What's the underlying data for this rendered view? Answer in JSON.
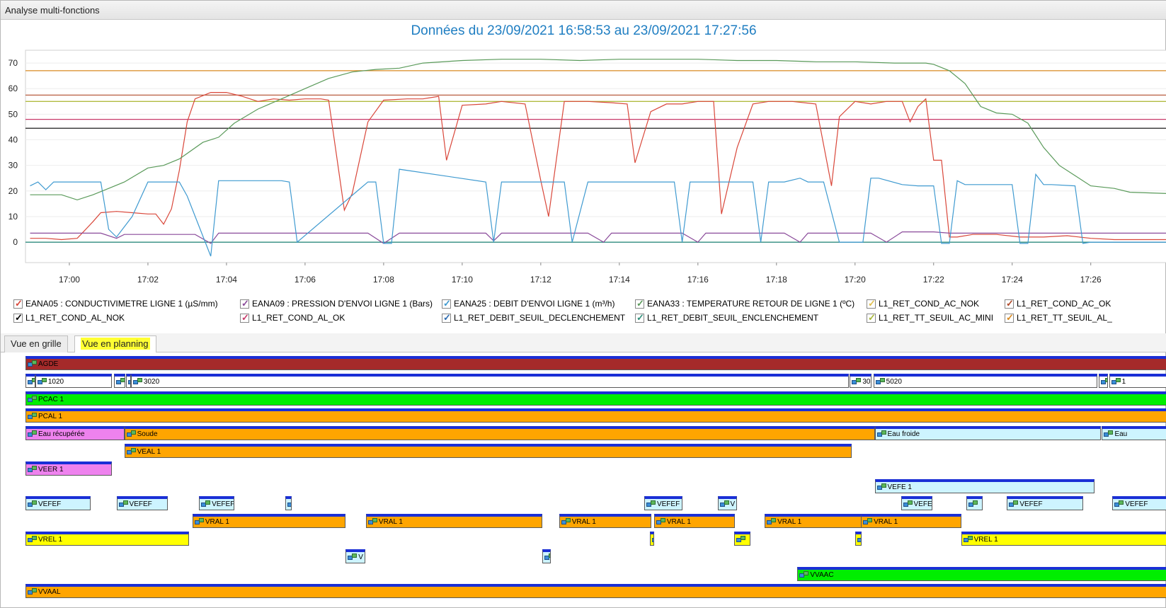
{
  "window": {
    "title": "Analyse multi-fonctions"
  },
  "chart_title": "Données du 23/09/2021 16:58:53 au 23/09/2021 17:27:56",
  "chart_data": {
    "type": "line",
    "title": "Données du 23/09/2021 16:58:53 au 23/09/2021 17:27:56",
    "xlim": [
      "16:58:53",
      "17:27:56"
    ],
    "ylim": [
      -8,
      75
    ],
    "y_ticks": [
      0,
      10,
      20,
      30,
      40,
      50,
      60,
      70
    ],
    "x_ticks": [
      "17:00",
      "17:02",
      "17:04",
      "17:06",
      "17:08",
      "17:10",
      "17:12",
      "17:14",
      "17:16",
      "17:18",
      "17:20",
      "17:22",
      "17:24",
      "17:26"
    ],
    "grid": true,
    "legend_position": "bottom",
    "series": [
      {
        "name": "EANA05 : CONDUCTIVIMETRE LIGNE 1 (µS/mm)",
        "color": "#d9473a",
        "x": [
          "16:59:00",
          "16:59:24",
          "16:59:48",
          "17:00:12",
          "17:00:36",
          "17:00:48",
          "17:01:12",
          "17:01:36",
          "17:02:00",
          "17:02:12",
          "17:02:24",
          "17:02:36",
          "17:02:48",
          "17:03:00",
          "17:03:12",
          "17:03:36",
          "17:04:00",
          "17:04:24",
          "17:04:48",
          "17:05:12",
          "17:05:36",
          "17:06:00",
          "17:06:24",
          "17:06:36",
          "17:07:00",
          "17:07:12",
          "17:07:36",
          "17:08:00",
          "17:08:36",
          "17:09:00",
          "17:09:24",
          "17:09:36",
          "17:10:00",
          "17:10:36",
          "17:11:00",
          "17:11:36",
          "17:12:00",
          "17:12:12",
          "17:12:36",
          "17:13:12",
          "17:13:48",
          "17:14:12",
          "17:14:24",
          "17:14:48",
          "17:15:12",
          "17:15:36",
          "17:16:00",
          "17:16:24",
          "17:16:36",
          "17:17:00",
          "17:17:24",
          "17:17:48",
          "17:18:24",
          "17:19:00",
          "17:19:24",
          "17:19:36",
          "17:20:00",
          "17:20:24",
          "17:20:48",
          "17:21:12",
          "17:21:24",
          "17:21:36",
          "17:21:48",
          "17:22:00",
          "17:22:12",
          "17:22:24",
          "17:22:36",
          "17:23:00",
          "17:23:36",
          "17:24:12",
          "17:24:48",
          "17:25:24",
          "17:26:00",
          "17:26:36",
          "17:27:12",
          "17:27:56"
        ],
        "y": [
          1.5,
          1.5,
          1,
          1.5,
          8,
          11.5,
          12,
          11.5,
          11,
          11,
          7,
          13,
          28,
          47,
          56,
          58.5,
          58.5,
          57,
          55,
          56,
          55.5,
          56,
          56,
          55.5,
          12.5,
          19,
          47,
          55.5,
          56,
          56,
          57,
          32,
          53.5,
          54,
          55,
          54,
          24,
          10,
          55,
          55,
          54.5,
          54,
          31,
          51,
          54,
          54,
          55,
          55,
          11,
          37,
          54,
          55,
          55,
          54,
          22,
          49,
          55,
          54,
          55,
          55,
          47,
          53,
          56,
          32,
          32,
          2,
          2,
          3,
          3,
          2,
          2,
          2.5,
          1.5,
          1,
          1,
          1
        ]
      },
      {
        "name": "EANA09 : PRESSION D'ENVOI LIGNE 1 (Bars)",
        "color": "#8a4a9a",
        "x": [
          "16:59:00",
          "17:00:48",
          "17:01:12",
          "17:01:24",
          "17:03:12",
          "17:03:36",
          "17:03:48",
          "17:07:36",
          "17:08:00",
          "17:08:24",
          "17:10:36",
          "17:10:48",
          "17:11:00",
          "17:11:12",
          "17:13:12",
          "17:13:36",
          "17:13:48",
          "17:15:36",
          "17:16:00",
          "17:16:12",
          "17:18:12",
          "17:18:36",
          "17:18:48",
          "17:20:24",
          "17:20:48",
          "17:21:12",
          "17:22:00",
          "17:22:24",
          "17:27:56"
        ],
        "y": [
          3.5,
          3.5,
          1.5,
          3,
          3,
          -0.5,
          3.5,
          3.5,
          -0.5,
          3.5,
          3.5,
          0.5,
          3.5,
          3.5,
          3.5,
          0,
          3.5,
          3.5,
          0,
          3.5,
          3.5,
          0,
          3.5,
          3.5,
          0,
          4,
          4,
          3.5,
          3.5
        ]
      },
      {
        "name": "EANA25 : DEBIT D'ENVOI LIGNE 1 (m³/h)",
        "color": "#3f9ad0",
        "x": [
          "16:59:00",
          "16:59:12",
          "16:59:24",
          "16:59:36",
          "17:00:48",
          "17:01:00",
          "17:01:12",
          "17:01:36",
          "17:02:00",
          "17:02:48",
          "17:03:00",
          "17:03:36",
          "17:03:48",
          "17:05:24",
          "17:05:36",
          "17:05:48",
          "17:07:36",
          "17:07:48",
          "17:08:00",
          "17:08:12",
          "17:08:24",
          "17:10:36",
          "17:10:48",
          "17:11:00",
          "17:12:36",
          "17:12:48",
          "17:13:12",
          "17:13:24",
          "17:13:48",
          "17:15:24",
          "17:15:36",
          "17:15:48",
          "17:16:00",
          "17:17:24",
          "17:17:36",
          "17:17:48",
          "17:18:12",
          "17:18:36",
          "17:18:48",
          "17:19:12",
          "17:19:36",
          "17:20:12",
          "17:20:24",
          "17:20:36",
          "17:21:12",
          "17:21:36",
          "17:22:00",
          "17:22:12",
          "17:22:24",
          "17:22:36",
          "17:22:48",
          "17:23:12",
          "17:24:00",
          "17:24:12",
          "17:24:24",
          "17:24:36",
          "17:24:48",
          "17:25:00",
          "17:25:36",
          "17:25:48",
          "17:26:00",
          "17:27:56"
        ],
        "y": [
          22,
          23.5,
          20.5,
          23.5,
          23.5,
          5,
          2,
          10,
          23.5,
          23.5,
          18,
          -5.5,
          24,
          24,
          23.5,
          0,
          23.5,
          23.5,
          -0.5,
          -0.5,
          28.5,
          23.5,
          0,
          23.5,
          23.5,
          0,
          23.5,
          23.5,
          23.5,
          23.5,
          0,
          23.5,
          23.5,
          23.5,
          0,
          23.5,
          23.5,
          25,
          23.5,
          23.5,
          0,
          0,
          25,
          25,
          22.5,
          22,
          22,
          -0.5,
          -0.5,
          24,
          22.5,
          22.5,
          22.5,
          -0.5,
          -0.5,
          26.5,
          22.5,
          22.5,
          22,
          -0.5,
          0,
          0
        ]
      },
      {
        "name": "EANA33 : TEMPERATURE RETOUR DE LIGNE 1 (ºC)",
        "color": "#5a9a5a",
        "x": [
          "16:59:00",
          "16:59:24",
          "16:59:48",
          "17:00:12",
          "17:00:36",
          "17:01:00",
          "17:01:24",
          "17:02:00",
          "17:02:24",
          "17:02:48",
          "17:03:24",
          "17:03:48",
          "17:04:12",
          "17:04:48",
          "17:05:24",
          "17:06:00",
          "17:06:36",
          "17:07:12",
          "17:07:48",
          "17:08:24",
          "17:09:00",
          "17:10:00",
          "17:11:00",
          "17:12:00",
          "17:13:00",
          "17:14:00",
          "17:15:00",
          "17:16:00",
          "17:17:00",
          "17:18:00",
          "17:19:00",
          "17:20:00",
          "17:21:00",
          "17:21:48",
          "17:22:00",
          "17:22:24",
          "17:22:48",
          "17:23:12",
          "17:23:36",
          "17:24:00",
          "17:24:24",
          "17:24:48",
          "17:25:12",
          "17:25:36",
          "17:26:00",
          "17:26:36",
          "17:27:00",
          "17:27:56"
        ],
        "y": [
          18.5,
          18.5,
          18.5,
          16.5,
          18.5,
          21,
          23.5,
          29,
          30,
          32.5,
          39,
          41,
          46.5,
          52,
          56,
          60,
          64,
          66.5,
          67.5,
          68,
          70,
          71,
          71.5,
          71.5,
          71,
          71.5,
          71.5,
          71.5,
          71,
          71,
          70.5,
          70.5,
          70,
          70,
          69.5,
          67,
          62,
          53,
          50.5,
          50,
          46.5,
          37,
          30,
          26,
          22,
          21,
          19.5,
          19
        ]
      },
      {
        "name": "L1_RET_COND_AL_NOK",
        "color": "#000000",
        "x": [
          "16:58:53",
          "17:27:56"
        ],
        "y": [
          44.5,
          44.5
        ]
      },
      {
        "name": "L1_RET_COND_AL_OK",
        "color": "#c83a6a",
        "x": [
          "16:58:53",
          "17:27:56"
        ],
        "y": [
          48,
          48
        ]
      },
      {
        "name": "L1_RET_DEBIT_SEUIL_DECLENCHEMENT",
        "color": "#2d6bb0",
        "x": [
          "16:58:53",
          "17:27:56"
        ],
        "y": [
          0,
          0
        ]
      },
      {
        "name": "L1_RET_DEBIT_SEUIL_ENCLENCHEMENT",
        "color": "#2f8f7a",
        "x": [
          "16:58:53",
          "17:27:56"
        ],
        "y": [
          0,
          0
        ]
      },
      {
        "name": "L1_RET_COND_AC_NOK",
        "color": "#e0c050",
        "x": [
          "16:58:53",
          "17:27:56"
        ],
        "y": [
          55,
          55
        ]
      },
      {
        "name": "L1_RET_COND_AC_OK",
        "color": "#b04a2a",
        "x": [
          "16:58:53",
          "17:27:56"
        ],
        "y": [
          57.5,
          57.5
        ]
      },
      {
        "name": "L1_RET_TT_SEUIL_AC_MINI",
        "color": "#a8b83a",
        "x": [
          "16:58:53",
          "17:27:56"
        ],
        "y": [
          55,
          55
        ]
      },
      {
        "name": "L1_RET_TT_SEUIL_AL_",
        "color": "#d88a20",
        "x": [
          "16:58:53",
          "17:27:56"
        ],
        "y": [
          67,
          67
        ]
      }
    ]
  },
  "legend": [
    {
      "label": "EANA05 : CONDUCTIVIMETRE LIGNE 1 (µS/mm)",
      "color": "#d9473a"
    },
    {
      "label": "EANA09 : PRESSION D'ENVOI LIGNE 1 (Bars)",
      "color": "#8a4a9a"
    },
    {
      "label": "EANA25 : DEBIT D'ENVOI LIGNE 1 (m³/h)",
      "color": "#3f9ad0"
    },
    {
      "label": "EANA33 : TEMPERATURE RETOUR DE LIGNE 1 (ºC)",
      "color": "#5a9a5a"
    },
    {
      "label": "L1_RET_COND_AC_NOK",
      "color": "#e0c050"
    },
    {
      "label": "L1_RET_COND_AC_OK",
      "color": "#b04a2a"
    },
    {
      "label": "L1_RET_COND_AL_NOK",
      "color": "#000000"
    },
    {
      "label": "L1_RET_COND_AL_OK",
      "color": "#c83a6a"
    },
    {
      "label": "L1_RET_DEBIT_SEUIL_DECLENCHEMENT",
      "color": "#2d6bb0"
    },
    {
      "label": "L1_RET_DEBIT_SEUIL_ENCLENCHEMENT",
      "color": "#2f8f7a"
    },
    {
      "label": "L1_RET_TT_SEUIL_AC_MINI",
      "color": "#a8b83a"
    },
    {
      "label": "L1_RET_TT_SEUIL_AL_",
      "color": "#d88a20"
    }
  ],
  "tabs": [
    {
      "label": "Vue en grille",
      "active": false
    },
    {
      "label": "Vue en planning",
      "active": true
    }
  ],
  "planning": {
    "start": "16:58:53",
    "end": "17:27:56",
    "rows": [
      [
        {
          "label": "AGDE",
          "start": "16:58:53",
          "end": "17:27:56",
          "color": "#a52a2a"
        }
      ],
      [
        {
          "label": "",
          "start": "16:58:53",
          "end": "16:59:08",
          "color": "#ffffff"
        },
        {
          "label": "1020",
          "start": "16:59:08",
          "end": "17:01:05",
          "color": "#ffffff"
        },
        {
          "label": "",
          "start": "17:01:08",
          "end": "17:01:25",
          "color": "#ffffff"
        },
        {
          "label": "",
          "start": "17:01:26",
          "end": "17:01:34",
          "color": "#ffffff"
        },
        {
          "label": "3020",
          "start": "17:01:34",
          "end": "17:19:50",
          "color": "#ffffff"
        },
        {
          "label": "30",
          "start": "17:19:52",
          "end": "17:20:25",
          "color": "#ffffff"
        },
        {
          "label": "5020",
          "start": "17:20:28",
          "end": "17:26:10",
          "color": "#ffffff"
        },
        {
          "label": "",
          "start": "17:26:12",
          "end": "17:26:26",
          "color": "#ffffff"
        },
        {
          "label": "1",
          "start": "17:26:28",
          "end": "17:27:56",
          "color": "#ffffff"
        }
      ],
      [
        {
          "label": "PCAC 1",
          "start": "16:58:53",
          "end": "17:27:56",
          "color": "#00ee00"
        }
      ],
      [
        {
          "label": "PCAL 1",
          "start": "16:58:53",
          "end": "17:27:56",
          "color": "#ffa500"
        }
      ],
      [
        {
          "label": "Eau récupérée",
          "start": "16:58:53",
          "end": "17:01:24",
          "color": "#ee82ee"
        },
        {
          "label": "Soude",
          "start": "17:01:24",
          "end": "17:20:30",
          "color": "#ffa500"
        },
        {
          "label": "Eau froide",
          "start": "17:20:30",
          "end": "17:26:15",
          "color": "#cdf4ff"
        },
        {
          "label": "Eau",
          "start": "17:26:17",
          "end": "17:27:56",
          "color": "#cdf4ff"
        }
      ],
      [
        {
          "label": "VEAL 1",
          "start": "17:01:24",
          "end": "17:19:55",
          "color": "#ffa500"
        }
      ],
      [
        {
          "label": "VEER 1",
          "start": "16:58:53",
          "end": "17:01:05",
          "color": "#ee82ee"
        }
      ],
      [
        {
          "label": "VEFE 1",
          "start": "17:20:30",
          "end": "17:26:06",
          "color": "#cdf4ff"
        }
      ],
      [
        {
          "label": "VEFEF",
          "start": "16:58:53",
          "end": "17:00:33",
          "color": "#cdf4ff"
        },
        {
          "label": "VEFEF",
          "start": "17:01:12",
          "end": "17:02:30",
          "color": "#cdf4ff"
        },
        {
          "label": "VEFEF",
          "start": "17:03:18",
          "end": "17:04:12",
          "color": "#cdf4ff"
        },
        {
          "label": "",
          "start": "17:05:30",
          "end": "17:05:40",
          "color": "#cdf4ff"
        },
        {
          "label": "VEFEF",
          "start": "17:14:38",
          "end": "17:15:36",
          "color": "#cdf4ff"
        },
        {
          "label": "V",
          "start": "17:16:30",
          "end": "17:17:00",
          "color": "#cdf4ff"
        },
        {
          "label": "VEFE",
          "start": "17:21:10",
          "end": "17:21:58",
          "color": "#cdf4ff"
        },
        {
          "label": "",
          "start": "17:22:50",
          "end": "17:23:15",
          "color": "#cdf4ff"
        },
        {
          "label": "VEFEF",
          "start": "17:23:52",
          "end": "17:25:48",
          "color": "#cdf4ff"
        },
        {
          "label": "VEFEF",
          "start": "17:26:33",
          "end": "17:27:56",
          "color": "#cdf4ff"
        }
      ],
      [
        {
          "label": "VRAL 1",
          "start": "17:03:08",
          "end": "17:07:02",
          "color": "#ffa500"
        },
        {
          "label": "VRAL 1",
          "start": "17:07:33",
          "end": "17:12:02",
          "color": "#ffa500"
        },
        {
          "label": "VRAL 1",
          "start": "17:12:28",
          "end": "17:14:49",
          "color": "#ffa500"
        },
        {
          "label": "VRAL 1",
          "start": "17:14:53",
          "end": "17:16:56",
          "color": "#ffa500"
        },
        {
          "label": "VRAL 1",
          "start": "17:17:42",
          "end": "17:20:17",
          "color": "#ffa500"
        },
        {
          "label": "VRAL 1",
          "start": "17:20:09",
          "end": "17:22:42",
          "color": "#ffa500"
        }
      ],
      [
        {
          "label": "VREL 1",
          "start": "16:58:53",
          "end": "17:03:03",
          "color": "#ffff00"
        },
        {
          "label": "",
          "start": "17:14:47",
          "end": "17:14:53",
          "color": "#ffff00"
        },
        {
          "label": "",
          "start": "17:16:55",
          "end": "17:17:20",
          "color": "#ffff00"
        },
        {
          "label": "",
          "start": "17:20:00",
          "end": "17:20:10",
          "color": "#ffff00"
        },
        {
          "label": "VREL 1",
          "start": "17:22:42",
          "end": "17:27:56",
          "color": "#ffff00"
        }
      ],
      [
        {
          "label": "V",
          "start": "17:07:02",
          "end": "17:07:32",
          "color": "#cdf4ff"
        },
        {
          "label": "",
          "start": "17:12:02",
          "end": "17:12:15",
          "color": "#cdf4ff"
        }
      ],
      [
        {
          "label": "VVAAC",
          "start": "17:18:32",
          "end": "17:27:56",
          "color": "#00ee00"
        }
      ],
      [
        {
          "label": "VVAAL",
          "start": "16:58:53",
          "end": "17:27:56",
          "color": "#ffa500"
        }
      ]
    ]
  }
}
